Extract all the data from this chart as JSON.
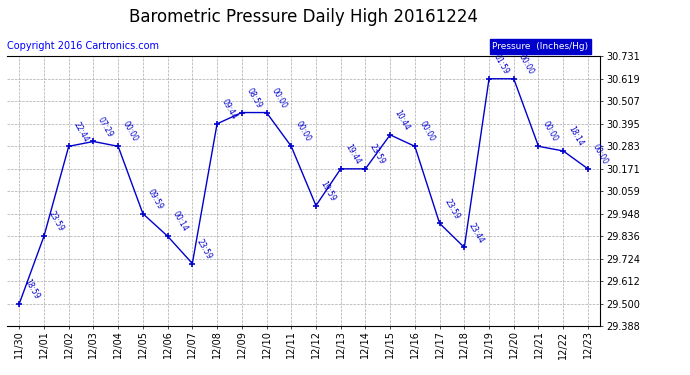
{
  "title": "Barometric Pressure Daily High 20161224",
  "copyright": "Copyright 2016 Cartronics.com",
  "legend_label": "Pressure  (Inches/Hg)",
  "x_labels": [
    "11/30",
    "12/01",
    "12/02",
    "12/03",
    "12/04",
    "12/05",
    "12/06",
    "12/07",
    "12/08",
    "12/09",
    "12/10",
    "12/11",
    "12/12",
    "12/13",
    "12/14",
    "12/15",
    "12/16",
    "12/17",
    "12/18",
    "12/19",
    "12/20",
    "12/21",
    "12/22",
    "12/23"
  ],
  "y_values": [
    29.5,
    29.836,
    30.283,
    30.307,
    30.283,
    29.948,
    29.836,
    29.7,
    30.395,
    30.451,
    30.451,
    30.283,
    29.988,
    30.171,
    30.171,
    30.34,
    30.283,
    29.9,
    29.78,
    30.619,
    30.619,
    30.283,
    30.26,
    30.171
  ],
  "time_labels": [
    "18:59",
    "23:59",
    "22:44",
    "07:29",
    "00:00",
    "09:59",
    "00:14",
    "23:59",
    "09:44",
    "08:59",
    "00:00",
    "00:00",
    "19:59",
    "19:44",
    "23:59",
    "10:44",
    "00:00",
    "23:59",
    "23:44",
    "01:59",
    "00:00",
    "00:00",
    "18:14",
    "00:00"
  ],
  "ylim_min": 29.388,
  "ylim_max": 30.731,
  "yticks": [
    29.388,
    29.5,
    29.612,
    29.724,
    29.836,
    29.948,
    30.059,
    30.171,
    30.283,
    30.395,
    30.507,
    30.619,
    30.731
  ],
  "line_color": "#0000cc",
  "grid_color": "#aaaaaa",
  "bg_color": "#ffffff",
  "title_fontsize": 12,
  "copyright_fontsize": 7,
  "tick_fontsize": 7,
  "annot_fontsize": 5.5
}
